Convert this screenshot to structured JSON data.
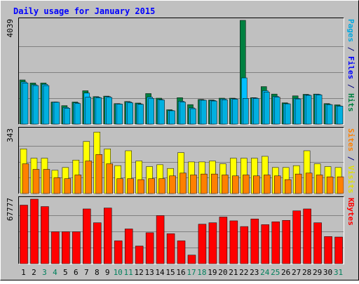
{
  "title": "Daily usage for January 2015",
  "colors": {
    "background": "#c0c0c0",
    "plot_bg": "#c0c0c0",
    "hits": "#008040",
    "files": "#00c0ff",
    "pages": "#00b0e0",
    "visits": "#ffff00",
    "sites": "#ff8000",
    "kbytes": "#ff0000",
    "title_text": "#0000ff",
    "day_weekday": "#000000",
    "day_weekend": "#00805c"
  },
  "chart_data": [
    {
      "type": "bar",
      "panel": "hits-files-pages",
      "y_max_label": "4039",
      "ylim": [
        0,
        4039
      ],
      "right_label_parts": [
        {
          "text": "Pages",
          "color": "#00a8e0"
        },
        {
          "text": " / ",
          "color": "#000080"
        },
        {
          "text": "Files",
          "color": "#0000ff"
        },
        {
          "text": " / ",
          "color": "#000080"
        },
        {
          "text": "Hits",
          "color": "#008040"
        }
      ],
      "categories": [
        "1",
        "2",
        "3",
        "4",
        "5",
        "6",
        "7",
        "8",
        "9",
        "10",
        "11",
        "12",
        "13",
        "14",
        "15",
        "16",
        "17",
        "18",
        "19",
        "20",
        "21",
        "22",
        "23",
        "24",
        "25",
        "26",
        "27",
        "28",
        "29",
        "30",
        "31"
      ],
      "series": [
        {
          "name": "Hits",
          "values": [
            1720,
            1600,
            1600,
            860,
            720,
            860,
            1300,
            1070,
            1090,
            800,
            880,
            820,
            1190,
            1010,
            560,
            1030,
            760,
            960,
            940,
            1010,
            1010,
            4039,
            1030,
            1460,
            1170,
            830,
            1100,
            1160,
            1170,
            800,
            750
          ]
        },
        {
          "name": "Files",
          "values": [
            1640,
            1530,
            1550,
            860,
            650,
            830,
            1210,
            1050,
            1070,
            790,
            860,
            790,
            1050,
            960,
            530,
            890,
            630,
            940,
            920,
            980,
            990,
            1800,
            1020,
            1300,
            1080,
            800,
            1000,
            1140,
            1160,
            770,
            710
          ]
        },
        {
          "name": "Pages",
          "values": [
            1600,
            1500,
            1500,
            850,
            620,
            800,
            1050,
            1030,
            1040,
            780,
            830,
            770,
            1000,
            940,
            520,
            860,
            600,
            930,
            900,
            950,
            970,
            1000,
            1000,
            1250,
            1050,
            790,
            980,
            1120,
            1140,
            760,
            700
          ]
        }
      ],
      "weekend_days": [
        "3",
        "4",
        "10",
        "11",
        "17",
        "18",
        "24",
        "25",
        "31"
      ]
    },
    {
      "type": "bar",
      "panel": "visits-sites",
      "y_max_label": "343",
      "ylim": [
        0,
        343
      ],
      "right_label_parts": [
        {
          "text": "Sites",
          "color": "#ff8000"
        },
        {
          "text": " / ",
          "color": "#000080"
        },
        {
          "text": "Visits",
          "color": "#e0e000"
        }
      ],
      "series": [
        {
          "name": "Visits",
          "values": [
            240,
            190,
            190,
            125,
            140,
            180,
            280,
            330,
            240,
            150,
            230,
            175,
            145,
            155,
            135,
            220,
            170,
            170,
            175,
            160,
            190,
            190,
            190,
            200,
            140,
            140,
            150,
            230,
            160,
            145,
            140
          ]
        },
        {
          "name": "Sites",
          "values": [
            160,
            130,
            130,
            85,
            80,
            100,
            175,
            210,
            160,
            80,
            80,
            75,
            80,
            80,
            95,
            110,
            100,
            105,
            105,
            100,
            95,
            100,
            95,
            100,
            95,
            75,
            105,
            110,
            100,
            90,
            90
          ]
        }
      ]
    },
    {
      "type": "bar",
      "panel": "kbytes",
      "y_max_label": "67777",
      "ylim": [
        0,
        67777
      ],
      "right_label_parts": [
        {
          "text": "KBytes",
          "color": "#ff0000"
        }
      ],
      "series": [
        {
          "name": "KBytes",
          "values": [
            61500,
            67777,
            60000,
            33500,
            33500,
            33500,
            57500,
            43000,
            58500,
            24000,
            36500,
            18500,
            32500,
            50500,
            31500,
            24000,
            9000,
            41500,
            43000,
            49000,
            45000,
            39000,
            47000,
            41000,
            44000,
            45500,
            55500,
            57500,
            43000,
            28500,
            28000
          ]
        }
      ]
    }
  ]
}
